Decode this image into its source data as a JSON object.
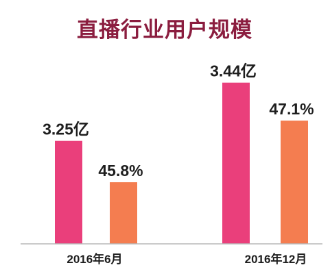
{
  "colors": {
    "title": "#8b1d3f",
    "axis": "#b9b9b9",
    "label": "#1e1e1e"
  },
  "chart_data": {
    "type": "bar",
    "title": "直播行业用户规模",
    "xlabel": "",
    "ylabel": "",
    "grid": false,
    "categories": [
      "2016年6月",
      "2016年12月"
    ],
    "series": [
      {
        "values": [
          3.25,
          3.44
        ],
        "data_labels": [
          "3.25亿",
          "3.44亿"
        ],
        "color": "#ea3f7b"
      },
      {
        "values": [
          45.8,
          47.1
        ],
        "data_labels": [
          "45.8%",
          "47.1%"
        ],
        "color": "#f47d50"
      }
    ]
  }
}
